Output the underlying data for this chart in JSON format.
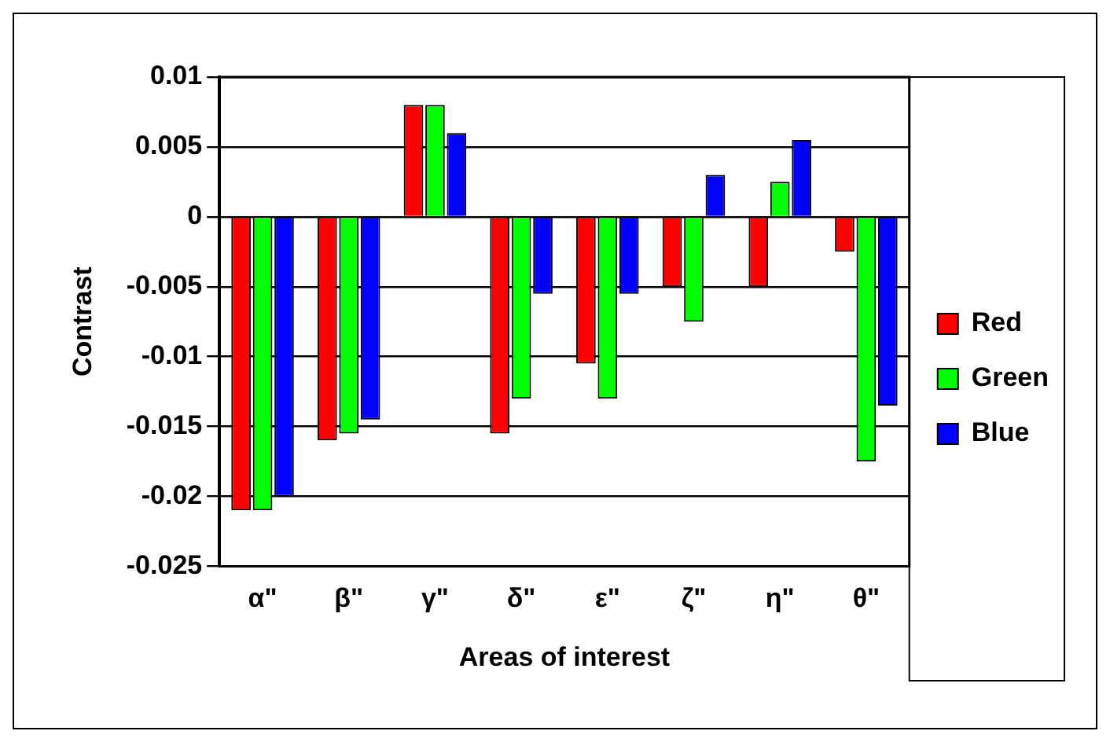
{
  "chart_data": {
    "type": "bar",
    "xlabel": "Areas of interest",
    "ylabel": "Contrast",
    "categories": [
      "α\"",
      "β\"",
      "γ\"",
      "δ\"",
      "ε\"",
      "ζ\"",
      "η\"",
      "θ\""
    ],
    "series": [
      {
        "name": "Red",
        "color": "#ff0000",
        "values": [
          -0.021,
          -0.016,
          0.008,
          -0.0155,
          -0.0105,
          -0.005,
          -0.005,
          -0.0025
        ]
      },
      {
        "name": "Green",
        "color": "#00ff00",
        "values": [
          -0.021,
          -0.0155,
          0.008,
          -0.013,
          -0.013,
          -0.0075,
          0.0025,
          -0.0175
        ]
      },
      {
        "name": "Blue",
        "color": "#0000ff",
        "values": [
          -0.02,
          -0.0145,
          0.006,
          -0.0055,
          -0.0055,
          0.003,
          0.0055,
          -0.0135
        ]
      }
    ],
    "ylim": [
      -0.025,
      0.01
    ],
    "yticks": [
      -0.025,
      -0.02,
      -0.015,
      -0.01,
      -0.005,
      0,
      0.005,
      0.01
    ],
    "grid": "y",
    "legend": "right"
  }
}
